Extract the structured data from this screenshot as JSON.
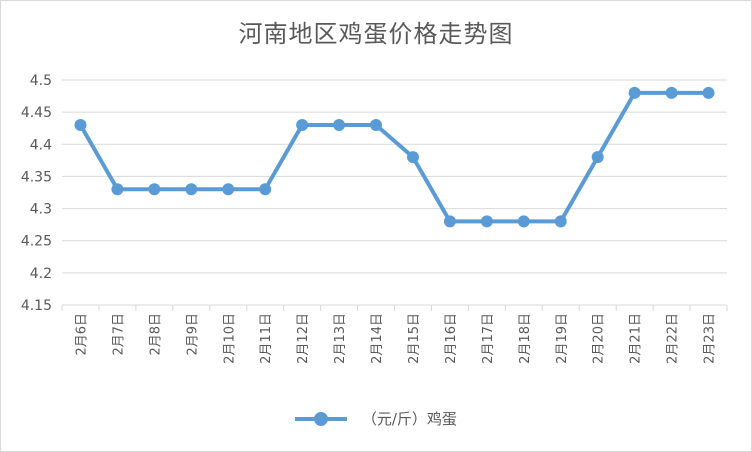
{
  "chart_data": {
    "type": "line",
    "title": "河南地区鸡蛋价格走势图",
    "categories": [
      "2月6日",
      "2月7日",
      "2月8日",
      "2月9日",
      "2月10日",
      "2月11日",
      "2月12日",
      "2月13日",
      "2月14日",
      "2月15日",
      "2月16日",
      "2月17日",
      "2月18日",
      "2月19日",
      "2月20日",
      "2月21日",
      "2月22日",
      "2月23日"
    ],
    "series": [
      {
        "name": "（元/斤）鸡蛋",
        "values": [
          4.43,
          4.33,
          4.33,
          4.33,
          4.33,
          4.33,
          4.43,
          4.43,
          4.43,
          4.38,
          4.28,
          4.28,
          4.28,
          4.28,
          4.38,
          4.48,
          4.48,
          4.48
        ]
      }
    ],
    "ylim": [
      4.15,
      4.5
    ],
    "yticks": [
      "4.15",
      "4.2",
      "4.25",
      "4.3",
      "4.35",
      "4.4",
      "4.45",
      "4.5"
    ],
    "grid": true,
    "legend_position": "bottom",
    "colors": {
      "series": "#5b9bd5",
      "grid": "#d9d9d9",
      "text": "#595959"
    }
  }
}
